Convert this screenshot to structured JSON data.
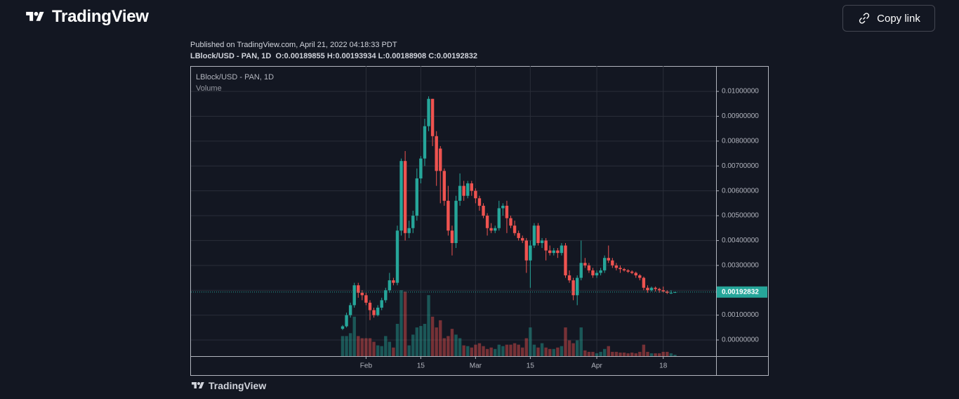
{
  "header": {
    "logo": "TradingView",
    "button": "Copy link"
  },
  "published": "Published on TradingView.com, April 21, 2022 04:18:33 PDT",
  "ohlc_prefixes": [
    "O:",
    "H:",
    "L:",
    "C:"
  ],
  "footer_logo": "TradingView",
  "chart_data": {
    "type": "candlestick",
    "title": "LBlock/USD - PAN, 1D",
    "volume_label": "Volume",
    "up_color": "#26a69a",
    "down_color": "#ef5350",
    "grid": true,
    "ylim": [
      -0.00065,
      0.01102
    ],
    "yticks": [
      {
        "value": 0,
        "label": "0.00000000"
      },
      {
        "value": 0.001,
        "label": "0.00100000"
      },
      {
        "value": 0.002,
        "label": "0.00200000"
      },
      {
        "value": 0.003,
        "label": "0.00300000"
      },
      {
        "value": 0.004,
        "label": "0.00400000"
      },
      {
        "value": 0.005,
        "label": "0.00500000"
      },
      {
        "value": 0.006,
        "label": "0.00600000"
      },
      {
        "value": 0.007,
        "label": "0.00700000"
      },
      {
        "value": 0.008,
        "label": "0.00800000"
      },
      {
        "value": 0.009,
        "label": "0.00900000"
      },
      {
        "value": 0.01,
        "label": "0.01000000"
      }
    ],
    "xticks": [
      {
        "value": "2022-02-01",
        "label": "Feb"
      },
      {
        "value": "2022-02-15",
        "label": "15"
      },
      {
        "value": "2022-03-01",
        "label": "Mar"
      },
      {
        "value": "2022-03-15",
        "label": "15"
      },
      {
        "value": "2022-04-01",
        "label": "Apr"
      },
      {
        "value": "2022-04-18",
        "label": "18"
      }
    ],
    "x": [
      "2022-01-26",
      "2022-01-27",
      "2022-01-28",
      "2022-01-29",
      "2022-01-30",
      "2022-01-31",
      "2022-02-01",
      "2022-02-02",
      "2022-02-03",
      "2022-02-04",
      "2022-02-05",
      "2022-02-06",
      "2022-02-07",
      "2022-02-08",
      "2022-02-09",
      "2022-02-10",
      "2022-02-11",
      "2022-02-12",
      "2022-02-13",
      "2022-02-14",
      "2022-02-15",
      "2022-02-16",
      "2022-02-17",
      "2022-02-18",
      "2022-02-19",
      "2022-02-20",
      "2022-02-21",
      "2022-02-22",
      "2022-02-23",
      "2022-02-24",
      "2022-02-25",
      "2022-02-26",
      "2022-02-27",
      "2022-02-28",
      "2022-03-01",
      "2022-03-02",
      "2022-03-03",
      "2022-03-04",
      "2022-03-05",
      "2022-03-06",
      "2022-03-07",
      "2022-03-08",
      "2022-03-09",
      "2022-03-10",
      "2022-03-11",
      "2022-03-12",
      "2022-03-13",
      "2022-03-14",
      "2022-03-15",
      "2022-03-16",
      "2022-03-17",
      "2022-03-18",
      "2022-03-19",
      "2022-03-20",
      "2022-03-21",
      "2022-03-22",
      "2022-03-23",
      "2022-03-24",
      "2022-03-25",
      "2022-03-26",
      "2022-03-27",
      "2022-03-28",
      "2022-03-29",
      "2022-03-30",
      "2022-03-31",
      "2022-04-01",
      "2022-04-02",
      "2022-04-03",
      "2022-04-04",
      "2022-04-05",
      "2022-04-06",
      "2022-04-07",
      "2022-04-08",
      "2022-04-09",
      "2022-04-10",
      "2022-04-11",
      "2022-04-12",
      "2022-04-13",
      "2022-04-14",
      "2022-04-15",
      "2022-04-16",
      "2022-04-17",
      "2022-04-18",
      "2022-04-19",
      "2022-04-20",
      "2022-04-21"
    ],
    "open": [
      0.00045,
      0.00055,
      0.001,
      0.0014,
      0.0022,
      0.0019,
      0.0018,
      0.0015,
      0.0012,
      0.001,
      0.0013,
      0.0016,
      0.002,
      0.0024,
      0.0023,
      0.0044,
      0.0072,
      0.0043,
      0.0045,
      0.005,
      0.0065,
      0.0073,
      0.0086,
      0.0097,
      0.0082,
      0.0077,
      0.0068,
      0.0056,
      0.0044,
      0.0039,
      0.0056,
      0.0062,
      0.0058,
      0.0063,
      0.006,
      0.0057,
      0.0054,
      0.005,
      0.0045,
      0.0044,
      0.0045,
      0.0053,
      0.0054,
      0.0049,
      0.0046,
      0.0043,
      0.0041,
      0.004,
      0.0032,
      0.0038,
      0.0046,
      0.0039,
      0.004,
      0.0036,
      0.0035,
      0.0036,
      0.0035,
      0.0038,
      0.0026,
      0.0024,
      0.0018,
      0.0025,
      0.0031,
      0.003,
      0.0028,
      0.0026,
      0.0027,
      0.0028,
      0.0033,
      0.0032,
      0.003,
      0.0029,
      0.00285,
      0.0028,
      0.00275,
      0.0027,
      0.0026,
      0.0025,
      0.0021,
      0.002,
      0.0021,
      0.00205,
      0.002,
      0.00195,
      0.0019,
      0.00189855
    ],
    "high": [
      0.0006,
      0.0011,
      0.0015,
      0.0023,
      0.0023,
      0.002,
      0.0019,
      0.0016,
      0.0013,
      0.0014,
      0.0017,
      0.0021,
      0.0027,
      0.0025,
      0.0046,
      0.0073,
      0.0076,
      0.0048,
      0.0052,
      0.0069,
      0.0074,
      0.0089,
      0.0098,
      0.0097,
      0.0084,
      0.0078,
      0.0069,
      0.0062,
      0.0046,
      0.0058,
      0.0067,
      0.0064,
      0.0064,
      0.0064,
      0.0061,
      0.0058,
      0.0055,
      0.0051,
      0.0047,
      0.0046,
      0.0056,
      0.0055,
      0.0056,
      0.005,
      0.0048,
      0.0044,
      0.0042,
      0.0041,
      0.004,
      0.0047,
      0.0047,
      0.0041,
      0.0041,
      0.0038,
      0.0037,
      0.0037,
      0.0039,
      0.0039,
      0.0028,
      0.0025,
      0.0026,
      0.004,
      0.0033,
      0.0031,
      0.0029,
      0.0028,
      0.0029,
      0.0034,
      0.0038,
      0.0033,
      0.0031,
      0.003,
      0.0029,
      0.00285,
      0.0028,
      0.00275,
      0.00265,
      0.00255,
      0.0022,
      0.00215,
      0.00215,
      0.0021,
      0.00215,
      0.002,
      0.002,
      0.00193934
    ],
    "low": [
      0.0004,
      0.0005,
      0.0009,
      0.0013,
      0.0017,
      0.0016,
      0.0014,
      0.0008,
      0.0009,
      0.00095,
      0.0012,
      0.0015,
      0.0019,
      0.0022,
      0.0022,
      0.0042,
      0.004,
      0.0041,
      0.0043,
      0.0048,
      0.0063,
      0.007,
      0.0084,
      0.0078,
      0.0062,
      0.0055,
      0.0054,
      0.0042,
      0.0034,
      0.0037,
      0.0054,
      0.0056,
      0.0057,
      0.0058,
      0.0055,
      0.0052,
      0.0049,
      0.0042,
      0.0043,
      0.0043,
      0.0044,
      0.005,
      0.0043,
      0.0045,
      0.0042,
      0.004,
      0.0039,
      0.0027,
      0.0021,
      0.0037,
      0.0038,
      0.0037,
      0.0032,
      0.0034,
      0.0034,
      0.0033,
      0.0034,
      0.0025,
      0.0023,
      0.0016,
      0.0014,
      0.0024,
      0.0029,
      0.0027,
      0.0025,
      0.0025,
      0.0026,
      0.0027,
      0.0031,
      0.0029,
      0.0028,
      0.0027,
      0.00275,
      0.0027,
      0.00265,
      0.0025,
      0.0024,
      0.002,
      0.0019,
      0.00195,
      0.00195,
      0.0019,
      0.0019,
      0.00185,
      0.00185,
      0.00188908
    ],
    "close": [
      0.00055,
      0.001,
      0.0014,
      0.0022,
      0.0019,
      0.0018,
      0.0015,
      0.0012,
      0.001,
      0.0013,
      0.0016,
      0.002,
      0.0024,
      0.0023,
      0.0044,
      0.0072,
      0.0043,
      0.0045,
      0.005,
      0.0065,
      0.0073,
      0.0086,
      0.0097,
      0.0082,
      0.0068,
      0.0068,
      0.0056,
      0.0044,
      0.0039,
      0.0056,
      0.0062,
      0.0058,
      0.0063,
      0.006,
      0.0057,
      0.0054,
      0.005,
      0.0045,
      0.0044,
      0.0045,
      0.0053,
      0.0054,
      0.0049,
      0.0046,
      0.0043,
      0.0041,
      0.004,
      0.0032,
      0.0038,
      0.0046,
      0.0039,
      0.004,
      0.0036,
      0.0035,
      0.0036,
      0.0035,
      0.0038,
      0.0026,
      0.0024,
      0.0018,
      0.0025,
      0.0031,
      0.003,
      0.0028,
      0.0026,
      0.0027,
      0.0028,
      0.0033,
      0.0032,
      0.003,
      0.0029,
      0.00285,
      0.0028,
      0.00275,
      0.0027,
      0.0026,
      0.0025,
      0.0021,
      0.002,
      0.0021,
      0.00205,
      0.002,
      0.00195,
      0.0019,
      0.0019,
      0.00192832
    ],
    "volume": [
      28,
      28,
      32,
      55,
      28,
      25,
      25,
      25,
      20,
      15,
      14,
      28,
      20,
      12,
      45,
      92,
      90,
      15,
      30,
      40,
      42,
      45,
      85,
      55,
      40,
      50,
      25,
      28,
      38,
      30,
      25,
      15,
      14,
      12,
      16,
      18,
      14,
      10,
      12,
      10,
      16,
      14,
      16,
      16,
      18,
      16,
      12,
      25,
      40,
      16,
      12,
      18,
      12,
      10,
      10,
      12,
      14,
      40,
      22,
      18,
      22,
      40,
      8,
      6,
      6,
      4,
      6,
      10,
      14,
      6,
      6,
      5,
      5,
      4,
      5,
      4,
      6,
      16,
      6,
      4,
      4,
      4,
      6,
      6,
      4,
      2
    ]
  }
}
